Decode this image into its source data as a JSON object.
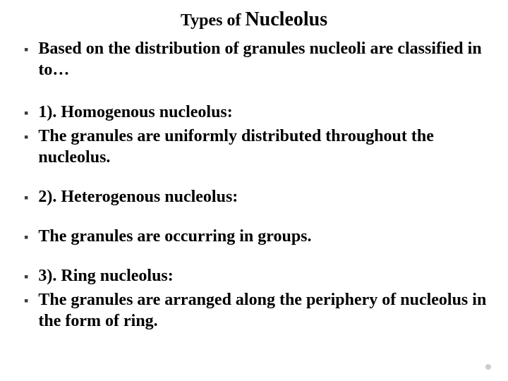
{
  "title": {
    "part1": "Types of ",
    "part2": "Nucleolus"
  },
  "bullets": {
    "intro": "Based on the distribution of granules nucleoli are classified in to…",
    "item1a": "1). Homogenous nucleolus:",
    "item1b": "The granules are uniformly distributed throughout the nucleolus.",
    "item2a": "2). Heterogenous nucleolus:",
    "item2b": "The granules are occurring in groups.",
    "item3a": "3). Ring nucleolus:",
    "item3b": "The granules are arranged along the periphery of nucleolus in the form of ring."
  },
  "styling": {
    "title_fontsize_small": 24,
    "title_fontsize_large": 28,
    "body_fontsize": 24,
    "text_color": "#000000",
    "bullet_color": "#3a3a3a",
    "background_color": "#ffffff",
    "font_family": "Georgia, Times New Roman, serif",
    "bullet_char": "▪"
  },
  "footer": {
    "page_indicator": ""
  }
}
